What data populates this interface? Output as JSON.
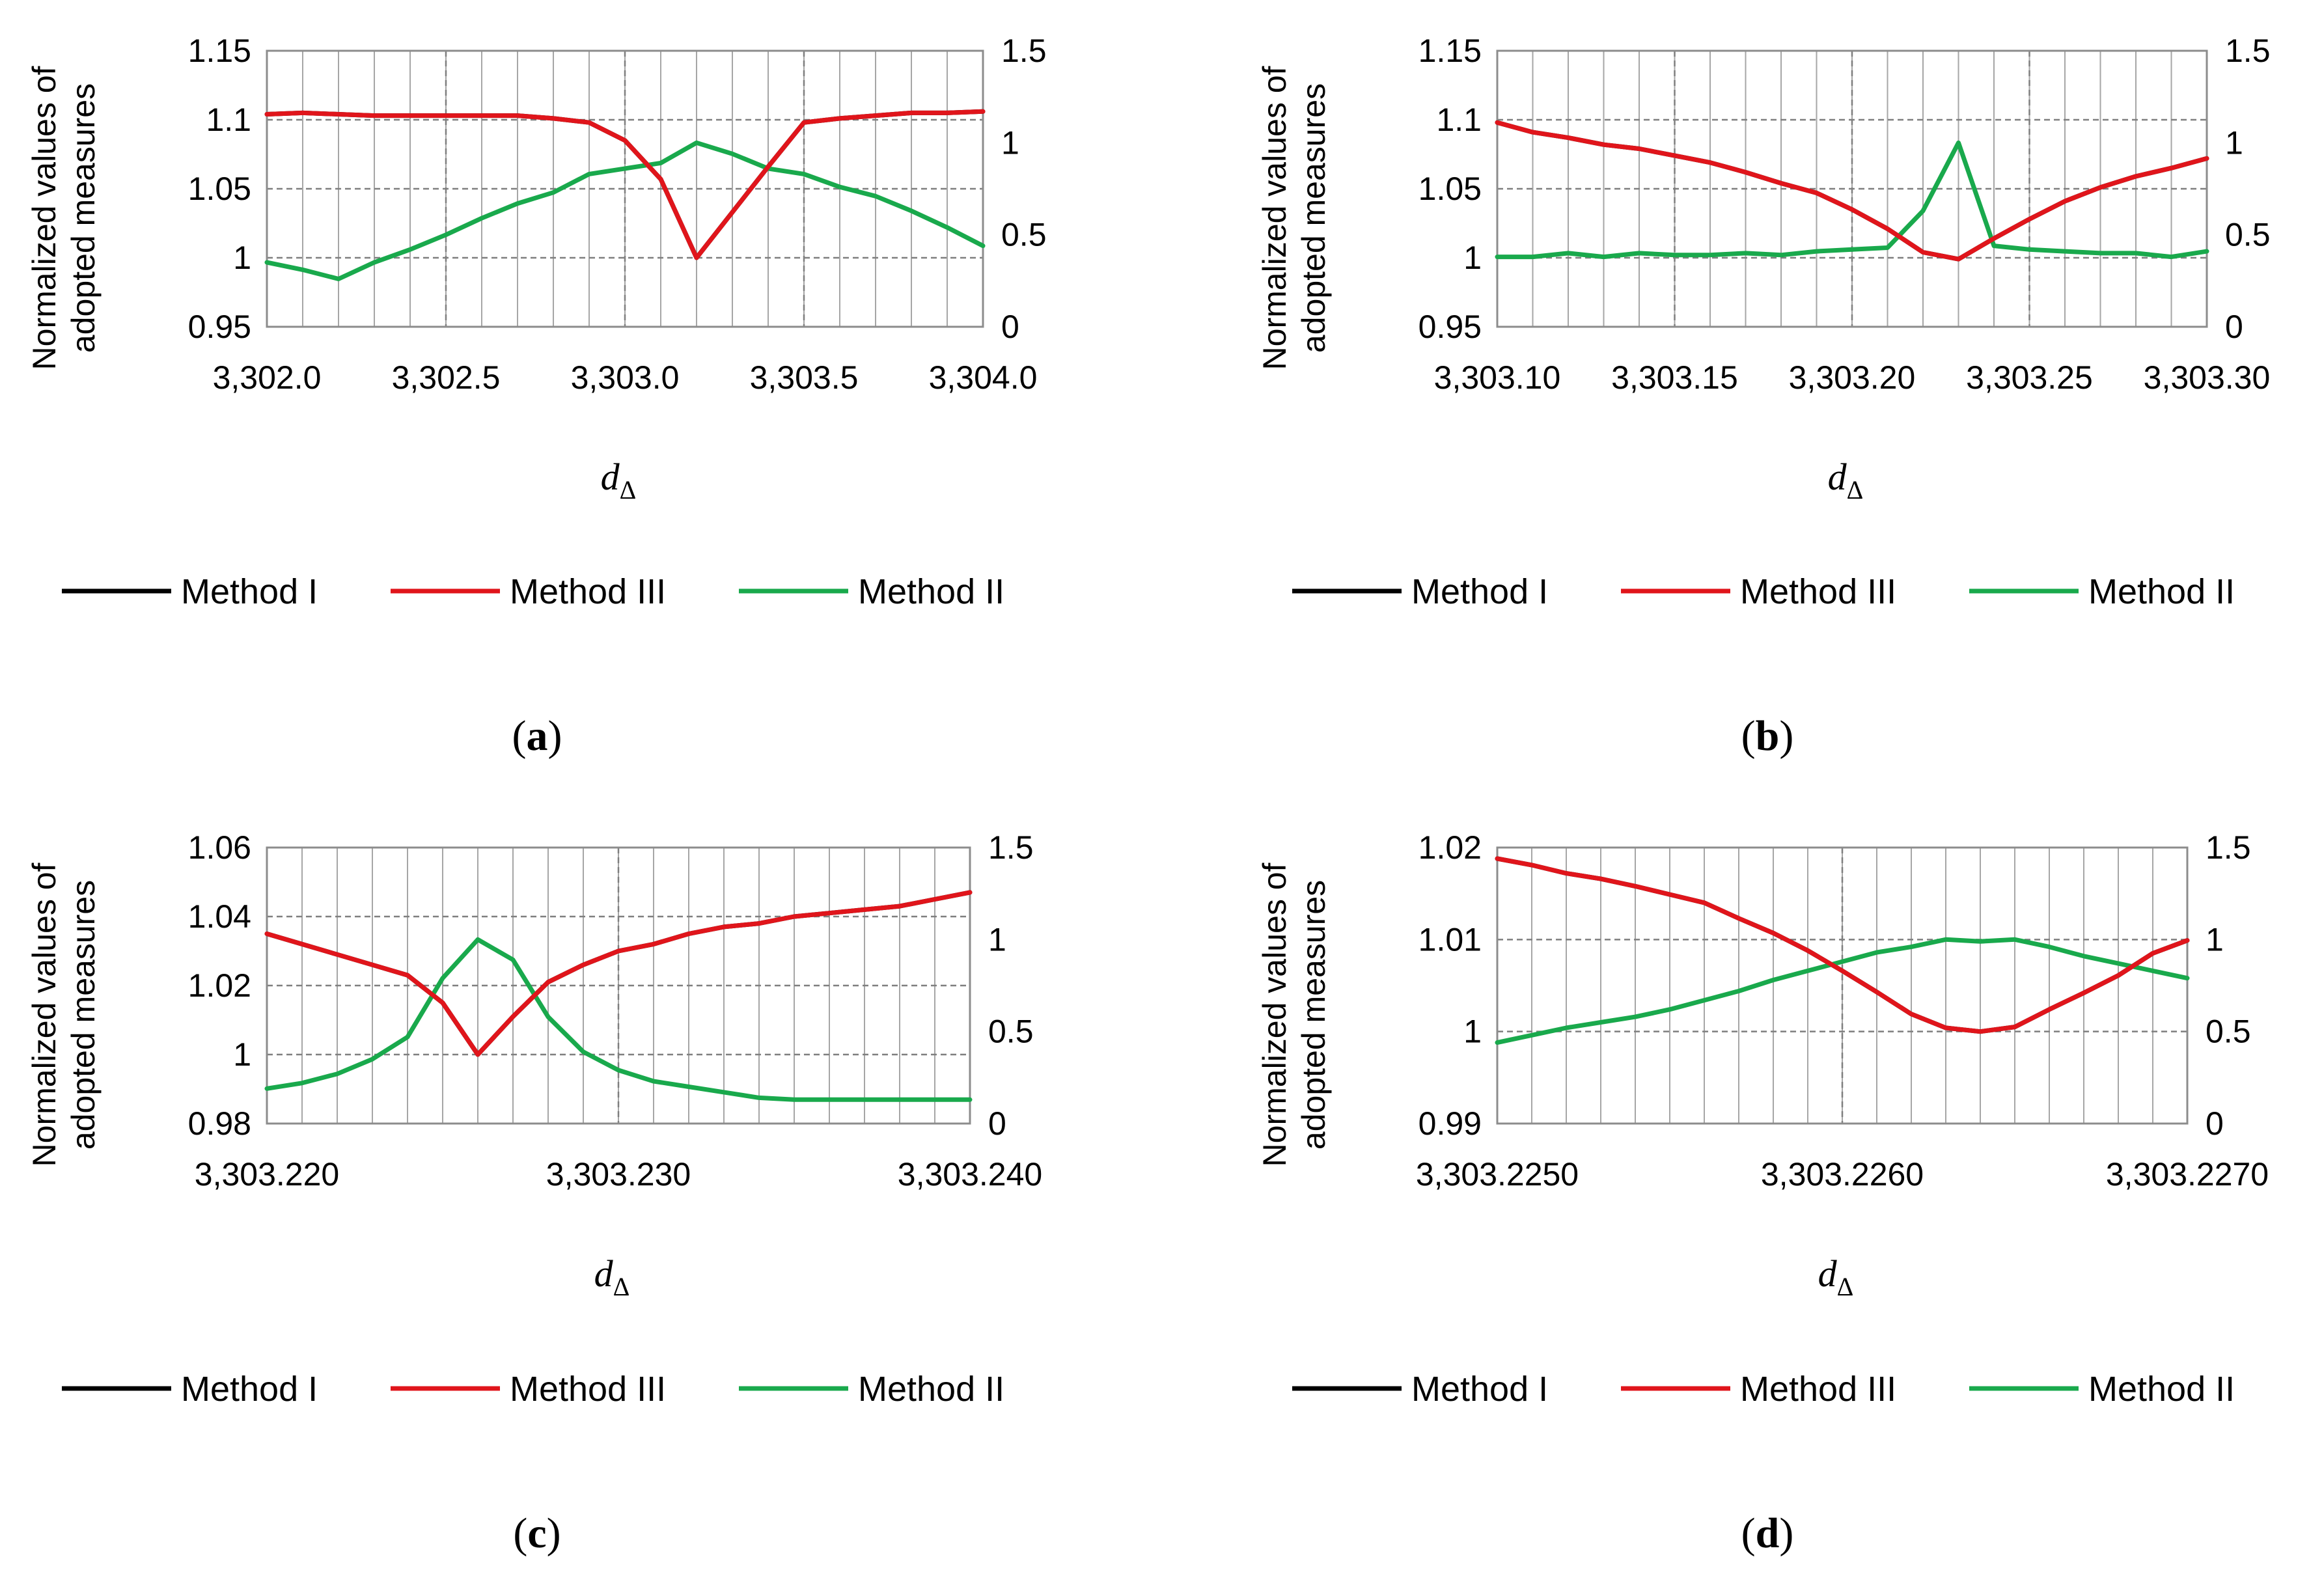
{
  "chart_data": [
    {
      "type": "line",
      "panel_label": "a",
      "ylabel": [
        "Normalized values of",
        "adopted measures"
      ],
      "xlabel": "d",
      "xlabel_sub": "Δ",
      "xlim": [
        3302.0,
        3304.0
      ],
      "xticks": [
        "3,302.0",
        "3,302.5",
        "3,303.0",
        "3,303.5",
        "3,304.0"
      ],
      "ylim": [
        0.95,
        1.15
      ],
      "yticks": [
        "0.95",
        "1",
        "1.05",
        "1.1",
        "1.15"
      ],
      "y2lim": [
        0,
        1.5
      ],
      "y2ticks": [
        "0",
        "0.5",
        "1",
        "1.5"
      ],
      "minor_vertical_lines": 20,
      "major_vertical_lines": 4,
      "legend": [
        "Method I",
        "Method III",
        "Method II"
      ],
      "series": [
        {
          "name": "Method I",
          "axis": "left",
          "color": "#000000",
          "x": [
            3302.0,
            3302.1,
            3302.2,
            3302.3,
            3302.4,
            3302.5,
            3302.6,
            3302.7,
            3302.8,
            3302.9,
            3303.0,
            3303.1,
            3303.2,
            3303.3,
            3303.4,
            3303.5,
            3303.6,
            3303.7,
            3303.8,
            3303.9,
            3304.0
          ],
          "y": [
            1.104,
            1.105,
            1.104,
            1.103,
            1.103,
            1.103,
            1.103,
            1.103,
            1.101,
            1.098,
            1.085,
            1.057,
            1.0,
            1.033,
            1.066,
            1.098,
            1.101,
            1.103,
            1.105,
            1.105,
            1.106
          ]
        },
        {
          "name": "Method III",
          "axis": "left",
          "color": "#e0151b",
          "x": [
            3302.0,
            3302.1,
            3302.2,
            3302.3,
            3302.4,
            3302.5,
            3302.6,
            3302.7,
            3302.8,
            3302.9,
            3303.0,
            3303.1,
            3303.2,
            3303.3,
            3303.4,
            3303.5,
            3303.6,
            3303.7,
            3303.8,
            3303.9,
            3304.0
          ],
          "y": [
            1.104,
            1.105,
            1.104,
            1.103,
            1.103,
            1.103,
            1.103,
            1.103,
            1.101,
            1.098,
            1.085,
            1.057,
            1.0,
            1.033,
            1.066,
            1.098,
            1.101,
            1.103,
            1.105,
            1.105,
            1.106
          ]
        },
        {
          "name": "Method II",
          "axis": "right",
          "color": "#19a94c",
          "x": [
            3302.0,
            3302.1,
            3302.2,
            3302.3,
            3302.4,
            3302.5,
            3302.6,
            3302.7,
            3302.8,
            3302.9,
            3303.0,
            3303.1,
            3303.2,
            3303.3,
            3303.4,
            3303.5,
            3303.6,
            3303.7,
            3303.8,
            3303.9,
            3304.0
          ],
          "y": [
            0.35,
            0.31,
            0.26,
            0.35,
            0.42,
            0.5,
            0.59,
            0.67,
            0.73,
            0.83,
            0.86,
            0.89,
            1.0,
            0.94,
            0.86,
            0.83,
            0.76,
            0.71,
            0.63,
            0.54,
            0.44
          ]
        }
      ]
    },
    {
      "type": "line",
      "panel_label": "b",
      "ylabel": [
        "Normalized values of",
        "adopted measures"
      ],
      "xlabel": "d",
      "xlabel_sub": "Δ",
      "xlim": [
        3303.1,
        3303.3
      ],
      "xticks": [
        "3,303.10",
        "3,303.15",
        "3,303.20",
        "3,303.25",
        "3,303.30"
      ],
      "ylim": [
        0.95,
        1.15
      ],
      "yticks": [
        "0.95",
        "1",
        "1.05",
        "1.1",
        "1.15"
      ],
      "y2lim": [
        0,
        1.5
      ],
      "y2ticks": [
        "0",
        "0.5",
        "1",
        "1.5"
      ],
      "minor_vertical_lines": 20,
      "major_vertical_lines": 4,
      "legend": [
        "Method I",
        "Method III",
        "Method II"
      ],
      "series": [
        {
          "name": "Method I",
          "axis": "left",
          "color": "#000000",
          "x": [
            3303.1,
            3303.11,
            3303.12,
            3303.13,
            3303.14,
            3303.15,
            3303.16,
            3303.17,
            3303.18,
            3303.19,
            3303.2,
            3303.21,
            3303.22,
            3303.23,
            3303.24,
            3303.25,
            3303.26,
            3303.27,
            3303.28,
            3303.29,
            3303.3
          ],
          "y": [
            1.098,
            1.091,
            1.087,
            1.082,
            1.079,
            1.074,
            1.069,
            1.062,
            1.054,
            1.047,
            1.035,
            1.021,
            1.004,
            0.999,
            1.014,
            1.028,
            1.041,
            1.051,
            1.059,
            1.065,
            1.072
          ]
        },
        {
          "name": "Method III",
          "axis": "left",
          "color": "#e0151b",
          "x": [
            3303.1,
            3303.11,
            3303.12,
            3303.13,
            3303.14,
            3303.15,
            3303.16,
            3303.17,
            3303.18,
            3303.19,
            3303.2,
            3303.21,
            3303.22,
            3303.23,
            3303.24,
            3303.25,
            3303.26,
            3303.27,
            3303.28,
            3303.29,
            3303.3
          ],
          "y": [
            1.098,
            1.091,
            1.087,
            1.082,
            1.079,
            1.074,
            1.069,
            1.062,
            1.054,
            1.047,
            1.035,
            1.021,
            1.004,
            0.999,
            1.014,
            1.028,
            1.041,
            1.051,
            1.059,
            1.065,
            1.072
          ]
        },
        {
          "name": "Method II",
          "axis": "right",
          "color": "#19a94c",
          "x": [
            3303.1,
            3303.11,
            3303.12,
            3303.13,
            3303.14,
            3303.15,
            3303.16,
            3303.17,
            3303.18,
            3303.19,
            3303.2,
            3303.21,
            3303.22,
            3303.23,
            3303.24,
            3303.25,
            3303.26,
            3303.27,
            3303.28,
            3303.29,
            3303.3
          ],
          "y": [
            0.38,
            0.38,
            0.4,
            0.38,
            0.4,
            0.39,
            0.39,
            0.4,
            0.39,
            0.41,
            0.42,
            0.43,
            0.63,
            1.0,
            0.44,
            0.42,
            0.41,
            0.4,
            0.4,
            0.38,
            0.41
          ]
        }
      ]
    },
    {
      "type": "line",
      "panel_label": "c",
      "ylabel": [
        "Normalized values of",
        "adopted measures"
      ],
      "xlabel": "d",
      "xlabel_sub": "Δ",
      "xlim": [
        3303.22,
        3303.24
      ],
      "xticks": [
        "3,303.220",
        "3,303.230",
        "3,303.240"
      ],
      "ylim": [
        0.98,
        1.06
      ],
      "yticks": [
        "0.98",
        "1",
        "1.02",
        "1.04",
        "1.06"
      ],
      "y2lim": [
        0,
        1.5
      ],
      "y2ticks": [
        "0",
        "0.5",
        "1",
        "1.5"
      ],
      "minor_vertical_lines": 20,
      "major_vertical_lines": 2,
      "legend": [
        "Method I",
        "Method III",
        "Method II"
      ],
      "series": [
        {
          "name": "Method I",
          "axis": "left",
          "color": "#000000",
          "x": [
            3303.22,
            3303.221,
            3303.222,
            3303.223,
            3303.224,
            3303.225,
            3303.226,
            3303.227,
            3303.228,
            3303.229,
            3303.23,
            3303.231,
            3303.232,
            3303.233,
            3303.234,
            3303.235,
            3303.236,
            3303.237,
            3303.238,
            3303.239,
            3303.24
          ],
          "y": [
            1.035,
            1.032,
            1.029,
            1.026,
            1.023,
            1.015,
            1.0,
            1.011,
            1.021,
            1.026,
            1.03,
            1.032,
            1.035,
            1.037,
            1.038,
            1.04,
            1.041,
            1.042,
            1.043,
            1.045,
            1.047
          ]
        },
        {
          "name": "Method III",
          "axis": "left",
          "color": "#e0151b",
          "x": [
            3303.22,
            3303.221,
            3303.222,
            3303.223,
            3303.224,
            3303.225,
            3303.226,
            3303.227,
            3303.228,
            3303.229,
            3303.23,
            3303.231,
            3303.232,
            3303.233,
            3303.234,
            3303.235,
            3303.236,
            3303.237,
            3303.238,
            3303.239,
            3303.24
          ],
          "y": [
            1.035,
            1.032,
            1.029,
            1.026,
            1.023,
            1.015,
            1.0,
            1.011,
            1.021,
            1.026,
            1.03,
            1.032,
            1.035,
            1.037,
            1.038,
            1.04,
            1.041,
            1.042,
            1.043,
            1.045,
            1.047
          ]
        },
        {
          "name": "Method II",
          "axis": "right",
          "color": "#19a94c",
          "x": [
            3303.22,
            3303.221,
            3303.222,
            3303.223,
            3303.224,
            3303.225,
            3303.226,
            3303.227,
            3303.228,
            3303.229,
            3303.23,
            3303.231,
            3303.232,
            3303.233,
            3303.234,
            3303.235,
            3303.236,
            3303.237,
            3303.238,
            3303.239,
            3303.24
          ],
          "y": [
            0.19,
            0.22,
            0.27,
            0.35,
            0.47,
            0.79,
            1.0,
            0.89,
            0.58,
            0.39,
            0.29,
            0.23,
            0.2,
            0.17,
            0.14,
            0.13,
            0.13,
            0.13,
            0.13,
            0.13,
            0.13
          ]
        }
      ]
    },
    {
      "type": "line",
      "panel_label": "d",
      "ylabel": [
        "Normalized values of",
        "adopted measures"
      ],
      "xlabel": "d",
      "xlabel_sub": "Δ",
      "xlim": [
        3303.225,
        3303.227
      ],
      "xticks": [
        "3,303.2250",
        "3,303.2260",
        "3,303.2270"
      ],
      "ylim": [
        0.99,
        1.02
      ],
      "yticks": [
        "0.99",
        "1",
        "1.01",
        "1.02"
      ],
      "y2lim": [
        0,
        1.5
      ],
      "y2ticks": [
        "0",
        "0.5",
        "1",
        "1.5"
      ],
      "minor_vertical_lines": 20,
      "major_vertical_lines": 2,
      "legend": [
        "Method I",
        "Method III",
        "Method II"
      ],
      "series": [
        {
          "name": "Method I",
          "axis": "left",
          "color": "#000000",
          "x": [
            3303.225,
            3303.2251,
            3303.2252,
            3303.2253,
            3303.2254,
            3303.2255,
            3303.2256,
            3303.2257,
            3303.2258,
            3303.2259,
            3303.226,
            3303.2261,
            3303.2262,
            3303.2263,
            3303.2264,
            3303.2265,
            3303.2266,
            3303.2267,
            3303.2268,
            3303.2269,
            3303.227
          ],
          "y": [
            1.0188,
            1.0181,
            1.0172,
            1.0166,
            1.0158,
            1.0149,
            1.014,
            1.0123,
            1.0107,
            1.0088,
            1.0066,
            1.0043,
            1.0019,
            1.0004,
            1.0,
            1.0005,
            1.0024,
            1.0042,
            1.0061,
            1.0085,
            1.0099
          ]
        },
        {
          "name": "Method III",
          "axis": "left",
          "color": "#e0151b",
          "x": [
            3303.225,
            3303.2251,
            3303.2252,
            3303.2253,
            3303.2254,
            3303.2255,
            3303.2256,
            3303.2257,
            3303.2258,
            3303.2259,
            3303.226,
            3303.2261,
            3303.2262,
            3303.2263,
            3303.2264,
            3303.2265,
            3303.2266,
            3303.2267,
            3303.2268,
            3303.2269,
            3303.227
          ],
          "y": [
            1.0188,
            1.0181,
            1.0172,
            1.0166,
            1.0158,
            1.0149,
            1.014,
            1.0123,
            1.0107,
            1.0088,
            1.0066,
            1.0043,
            1.0019,
            1.0004,
            1.0,
            1.0005,
            1.0024,
            1.0042,
            1.0061,
            1.0085,
            1.0099
          ]
        },
        {
          "name": "Method II",
          "axis": "right",
          "color": "#19a94c",
          "x": [
            3303.225,
            3303.2251,
            3303.2252,
            3303.2253,
            3303.2254,
            3303.2255,
            3303.2256,
            3303.2257,
            3303.2258,
            3303.2259,
            3303.226,
            3303.2261,
            3303.2262,
            3303.2263,
            3303.2264,
            3303.2265,
            3303.2266,
            3303.2267,
            3303.2268,
            3303.2269,
            3303.227
          ],
          "y": [
            0.44,
            0.48,
            0.52,
            0.55,
            0.58,
            0.62,
            0.67,
            0.72,
            0.78,
            0.83,
            0.88,
            0.93,
            0.96,
            1.0,
            0.99,
            1.0,
            0.96,
            0.91,
            0.87,
            0.83,
            0.79
          ]
        }
      ]
    }
  ]
}
